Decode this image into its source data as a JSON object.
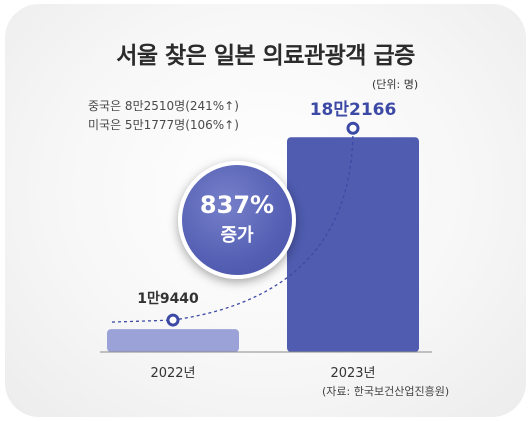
{
  "chart_data": {
    "type": "bar",
    "title": "서울 찾은 일본 의료관광객 급증",
    "unit_label": "(단위: 명)",
    "categories": [
      "2022년",
      "2023년"
    ],
    "values": [
      19440,
      182166
    ],
    "value_labels": [
      "1만9440",
      "18만2166"
    ],
    "ylim": [
      0,
      190000
    ],
    "notes": [
      "중국은 8만2510명(241%↑)",
      "미국은 5만1777명(106%↑)"
    ],
    "highlight": {
      "value": "837%",
      "label": "증가"
    },
    "source": "(자료: 한국보건산업진흥원)",
    "colors": {
      "bar_2022": "#9aa2d8",
      "bar_2023": "#4f5cb0",
      "accent": "#3d4aa5"
    }
  }
}
